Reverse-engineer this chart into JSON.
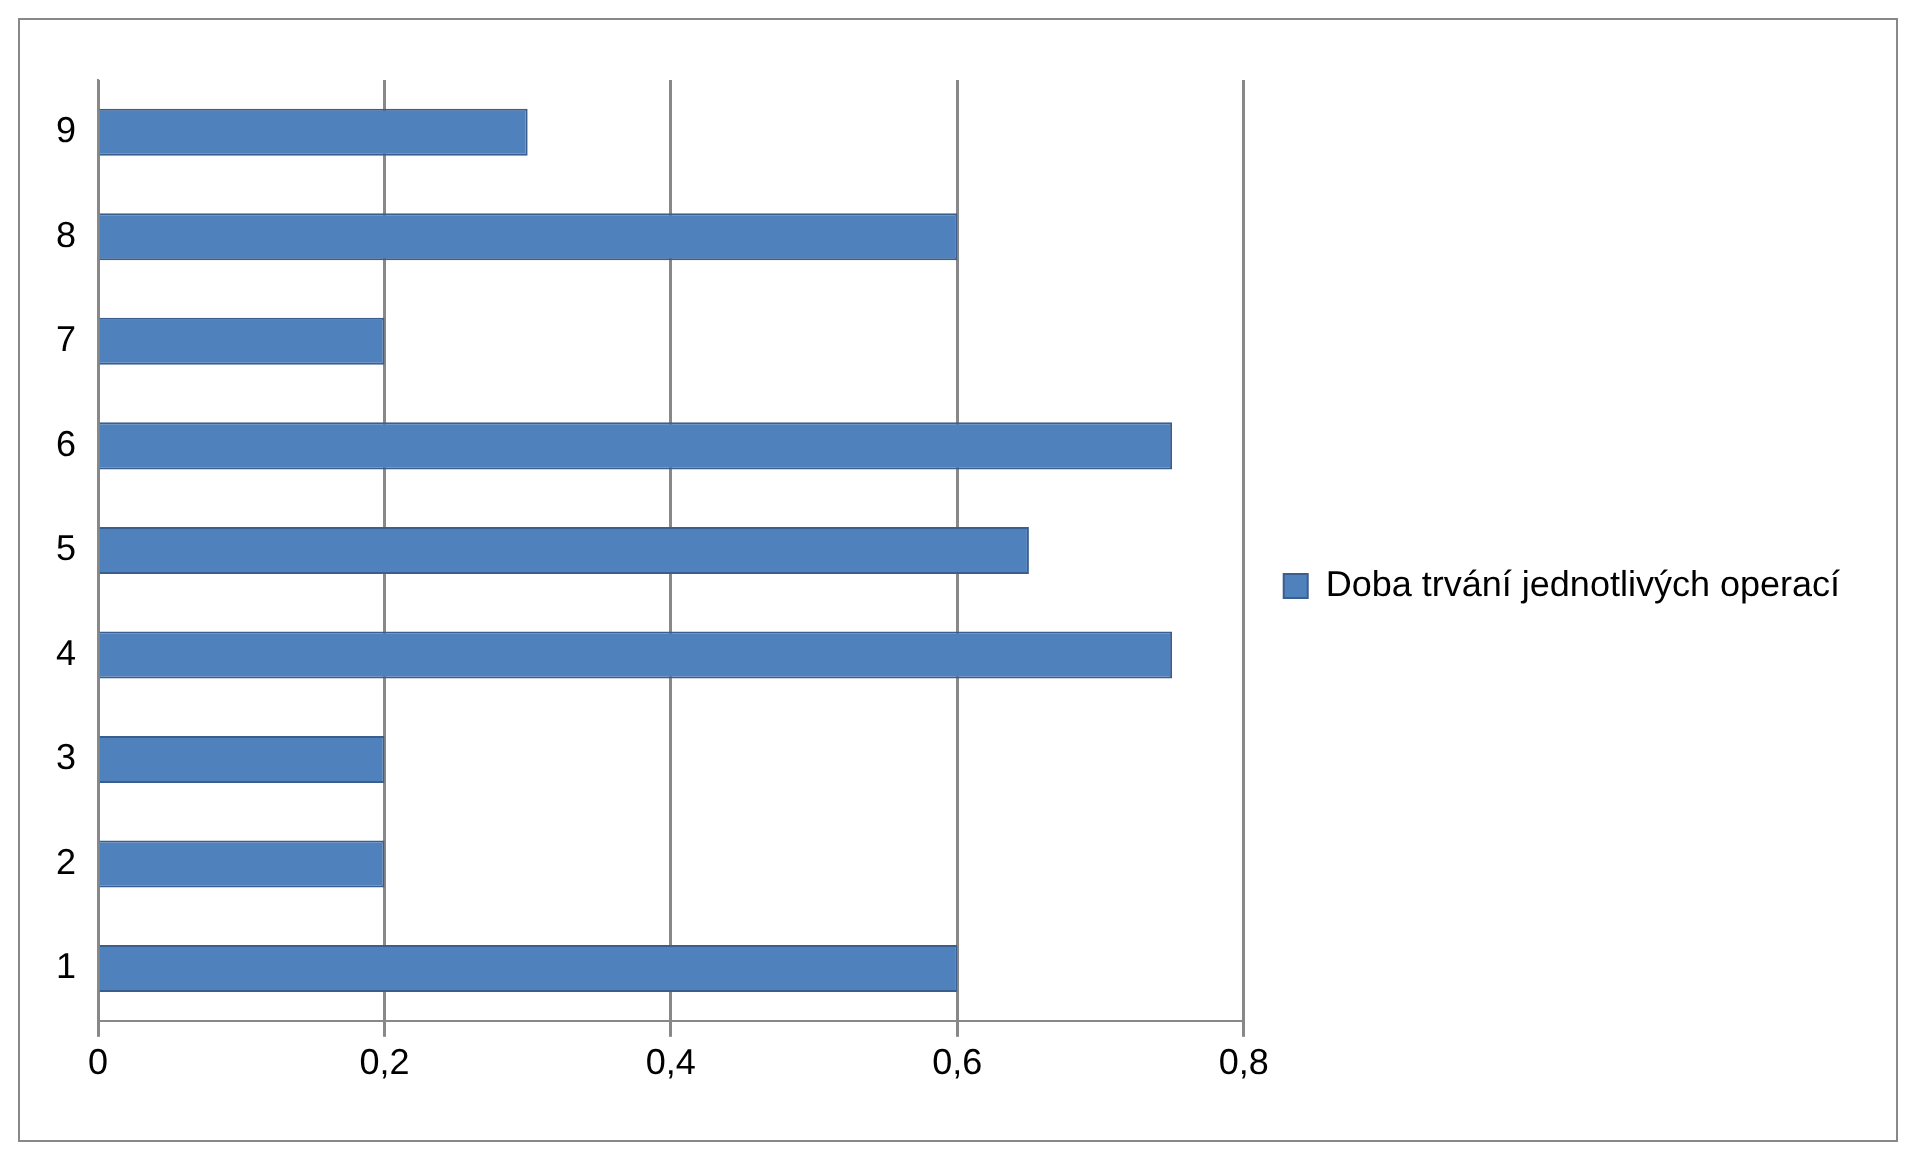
{
  "chart_data": {
    "type": "bar",
    "orientation": "horizontal",
    "categories": [
      "9",
      "8",
      "7",
      "6",
      "5",
      "4",
      "3",
      "2",
      "1"
    ],
    "series": [
      {
        "name": "Doba trvání jednotlivých operací",
        "color": "#4f81bd",
        "values": [
          0.3,
          0.6,
          0.2,
          0.75,
          0.65,
          0.75,
          0.2,
          0.2,
          0.6
        ]
      }
    ],
    "xlim": [
      0,
      0.8
    ],
    "xticks": [
      0,
      {
        "value": 0.2,
        "label": "0,2"
      },
      {
        "value": 0.4,
        "label": "0,4"
      },
      {
        "value": 0.6,
        "label": "0,6"
      },
      {
        "value": 0.8,
        "label": "0,8"
      }
    ],
    "grid": "x",
    "legend": "right"
  }
}
